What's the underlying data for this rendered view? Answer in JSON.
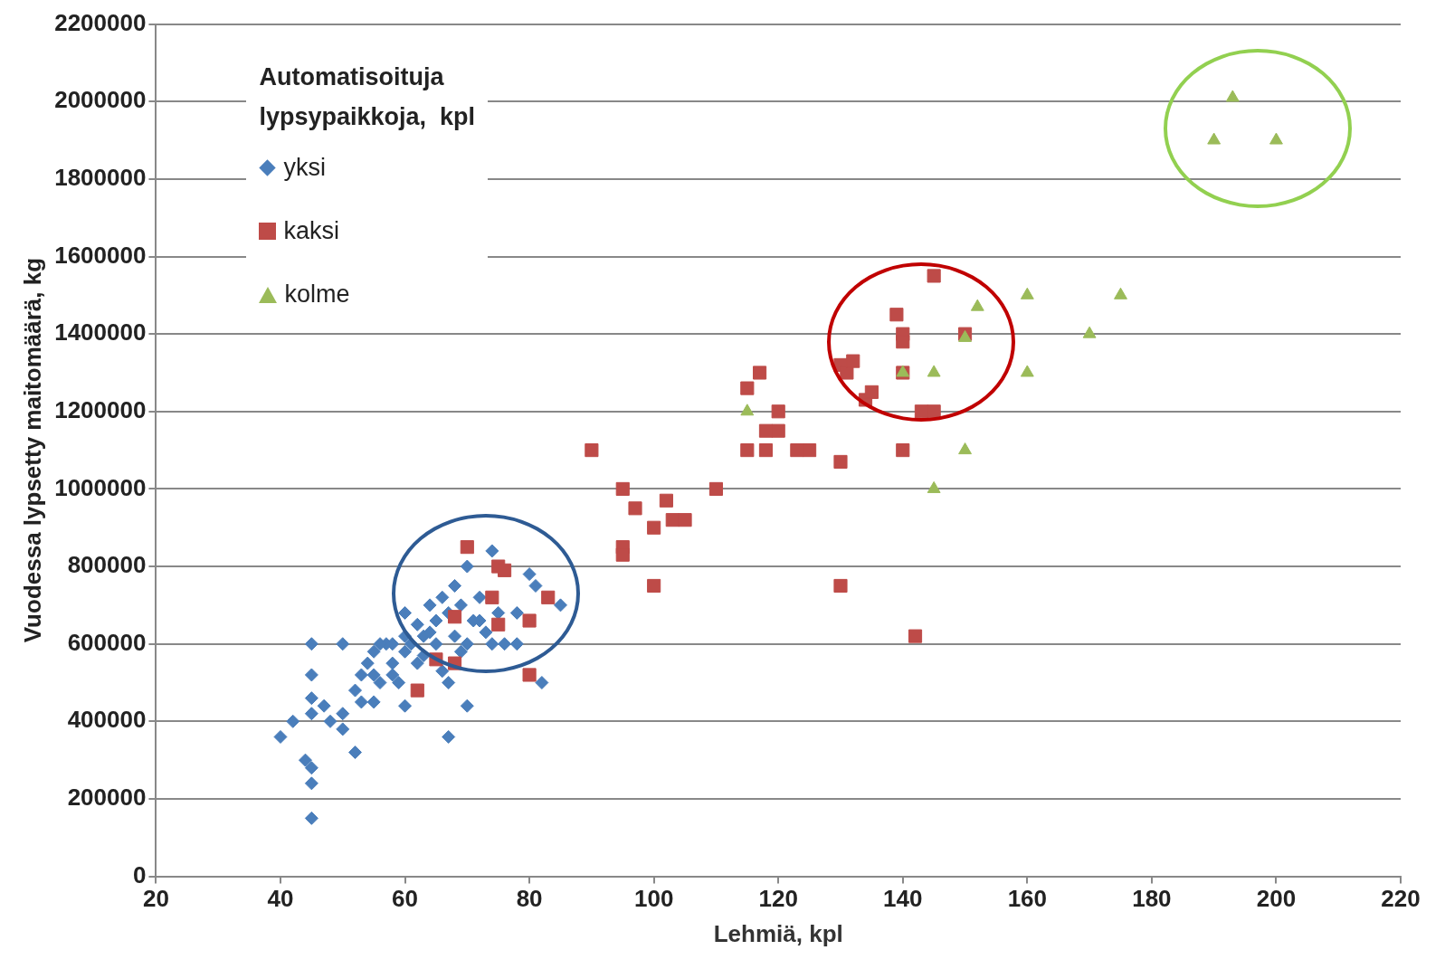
{
  "chart_data": {
    "type": "scatter",
    "xlabel": "Lehmiä, kpl",
    "ylabel": "Vuodessa lypsetty maitomäärä, kg",
    "legend_title": "Automatisoituja lypsypaikkoja,  kpl",
    "legend": "top left",
    "grid": "y",
    "xlim": [
      20,
      220
    ],
    "xticks": [
      20,
      40,
      60,
      80,
      100,
      120,
      140,
      160,
      180,
      200,
      220
    ],
    "ylim": [
      0,
      2200000
    ],
    "yticks": [
      0,
      200000,
      400000,
      600000,
      800000,
      1000000,
      1200000,
      1400000,
      1600000,
      1800000,
      2000000,
      2200000
    ],
    "series": [
      {
        "name": "yksi",
        "color": "#4a7ebb",
        "marker": "diamond",
        "x": [
          40,
          42,
          44,
          45,
          45,
          45,
          45,
          45,
          45,
          45,
          47,
          48,
          50,
          50,
          50,
          52,
          52,
          53,
          54,
          55,
          55,
          56,
          57,
          58,
          58,
          60,
          60,
          60,
          60,
          62,
          62,
          63,
          64,
          65,
          65,
          66,
          67,
          67,
          68,
          68,
          69,
          70,
          70,
          70,
          72,
          72,
          74,
          74,
          76,
          78,
          78,
          80,
          81,
          82,
          85,
          56,
          58,
          63,
          66,
          69,
          73,
          75,
          71,
          59,
          61,
          55,
          53,
          64,
          67
        ],
        "values": [
          360000,
          400000,
          300000,
          280000,
          240000,
          150000,
          600000,
          520000,
          460000,
          420000,
          440000,
          400000,
          600000,
          380000,
          420000,
          320000,
          480000,
          520000,
          550000,
          580000,
          450000,
          500000,
          600000,
          550000,
          520000,
          620000,
          580000,
          440000,
          680000,
          650000,
          550000,
          620000,
          700000,
          660000,
          600000,
          720000,
          360000,
          500000,
          750000,
          620000,
          700000,
          800000,
          440000,
          600000,
          720000,
          660000,
          840000,
          600000,
          600000,
          600000,
          680000,
          780000,
          750000,
          500000,
          700000,
          600000,
          600000,
          570000,
          530000,
          580000,
          630000,
          680000,
          660000,
          500000,
          600000,
          520000,
          450000,
          630000,
          680000
        ]
      },
      {
        "name": "kaksi",
        "color": "#be4b48",
        "marker": "square",
        "x": [
          90,
          95,
          95,
          95,
          97,
          100,
          100,
          102,
          103,
          105,
          110,
          115,
          117,
          115,
          118,
          118,
          120,
          120,
          123,
          125,
          130,
          130,
          130,
          131,
          132,
          134,
          135,
          139,
          140,
          140,
          140,
          140,
          142,
          143,
          145,
          145,
          150,
          70,
          74,
          75,
          76,
          75,
          68,
          80,
          83,
          80,
          62,
          65,
          68
        ],
        "values": [
          1100000,
          1000000,
          850000,
          830000,
          950000,
          900000,
          750000,
          970000,
          920000,
          920000,
          1000000,
          1260000,
          1300000,
          1100000,
          1100000,
          1150000,
          1200000,
          1150000,
          1100000,
          1100000,
          1070000,
          750000,
          1320000,
          1300000,
          1330000,
          1230000,
          1250000,
          1450000,
          1400000,
          1380000,
          1300000,
          1100000,
          620000,
          1200000,
          1200000,
          1550000,
          1400000,
          850000,
          720000,
          800000,
          790000,
          650000,
          670000,
          660000,
          720000,
          520000,
          480000,
          560000,
          550000
        ]
      },
      {
        "name": "kolme",
        "color": "#9bbb59",
        "marker": "triangle",
        "x": [
          115,
          140,
          145,
          145,
          150,
          150,
          152,
          160,
          160,
          170,
          175,
          190,
          193,
          200
        ],
        "values": [
          1200000,
          1300000,
          1300000,
          1000000,
          1100000,
          1390000,
          1470000,
          1500000,
          1300000,
          1400000,
          1500000,
          1900000,
          2010000,
          1900000
        ]
      }
    ]
  }
}
